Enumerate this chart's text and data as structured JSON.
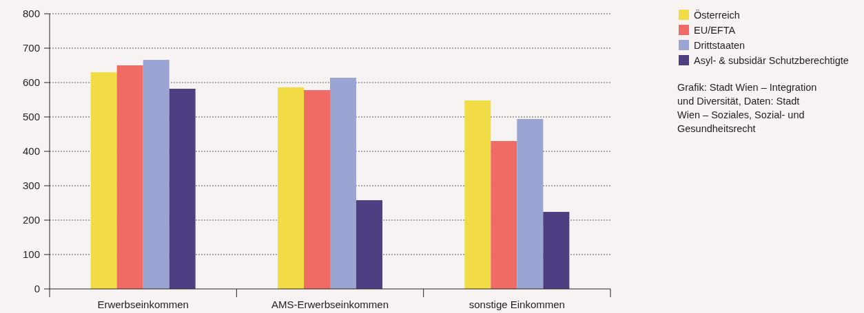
{
  "chart_data": {
    "type": "bar",
    "categories": [
      "Erwerbseinkommen",
      "AMS-Erwerbseinkommen",
      "sonstige Einkommen"
    ],
    "series": [
      {
        "name": "Österreich",
        "color": "#f2dc45",
        "values": [
          630,
          586,
          548
        ]
      },
      {
        "name": "EU/EFTA",
        "color": "#ef6b63",
        "values": [
          650,
          578,
          430
        ]
      },
      {
        "name": "Drittstaaten",
        "color": "#9ba5d4",
        "values": [
          666,
          614,
          494
        ]
      },
      {
        "name": "Asyl- & subsidär Schutzberechtigte",
        "color": "#4e3f82",
        "values": [
          582,
          258,
          224
        ]
      }
    ],
    "ylim": [
      0,
      800
    ],
    "yticks": [
      0,
      100,
      200,
      300,
      400,
      500,
      600,
      700,
      800
    ],
    "grid": "y",
    "legend": "top right",
    "annotations": [
      "Grafik: Stadt Wien – Integration und Diversität, Daten: Stadt Wien – Soziales, Sozial- und Gesundheitsrecht"
    ]
  }
}
